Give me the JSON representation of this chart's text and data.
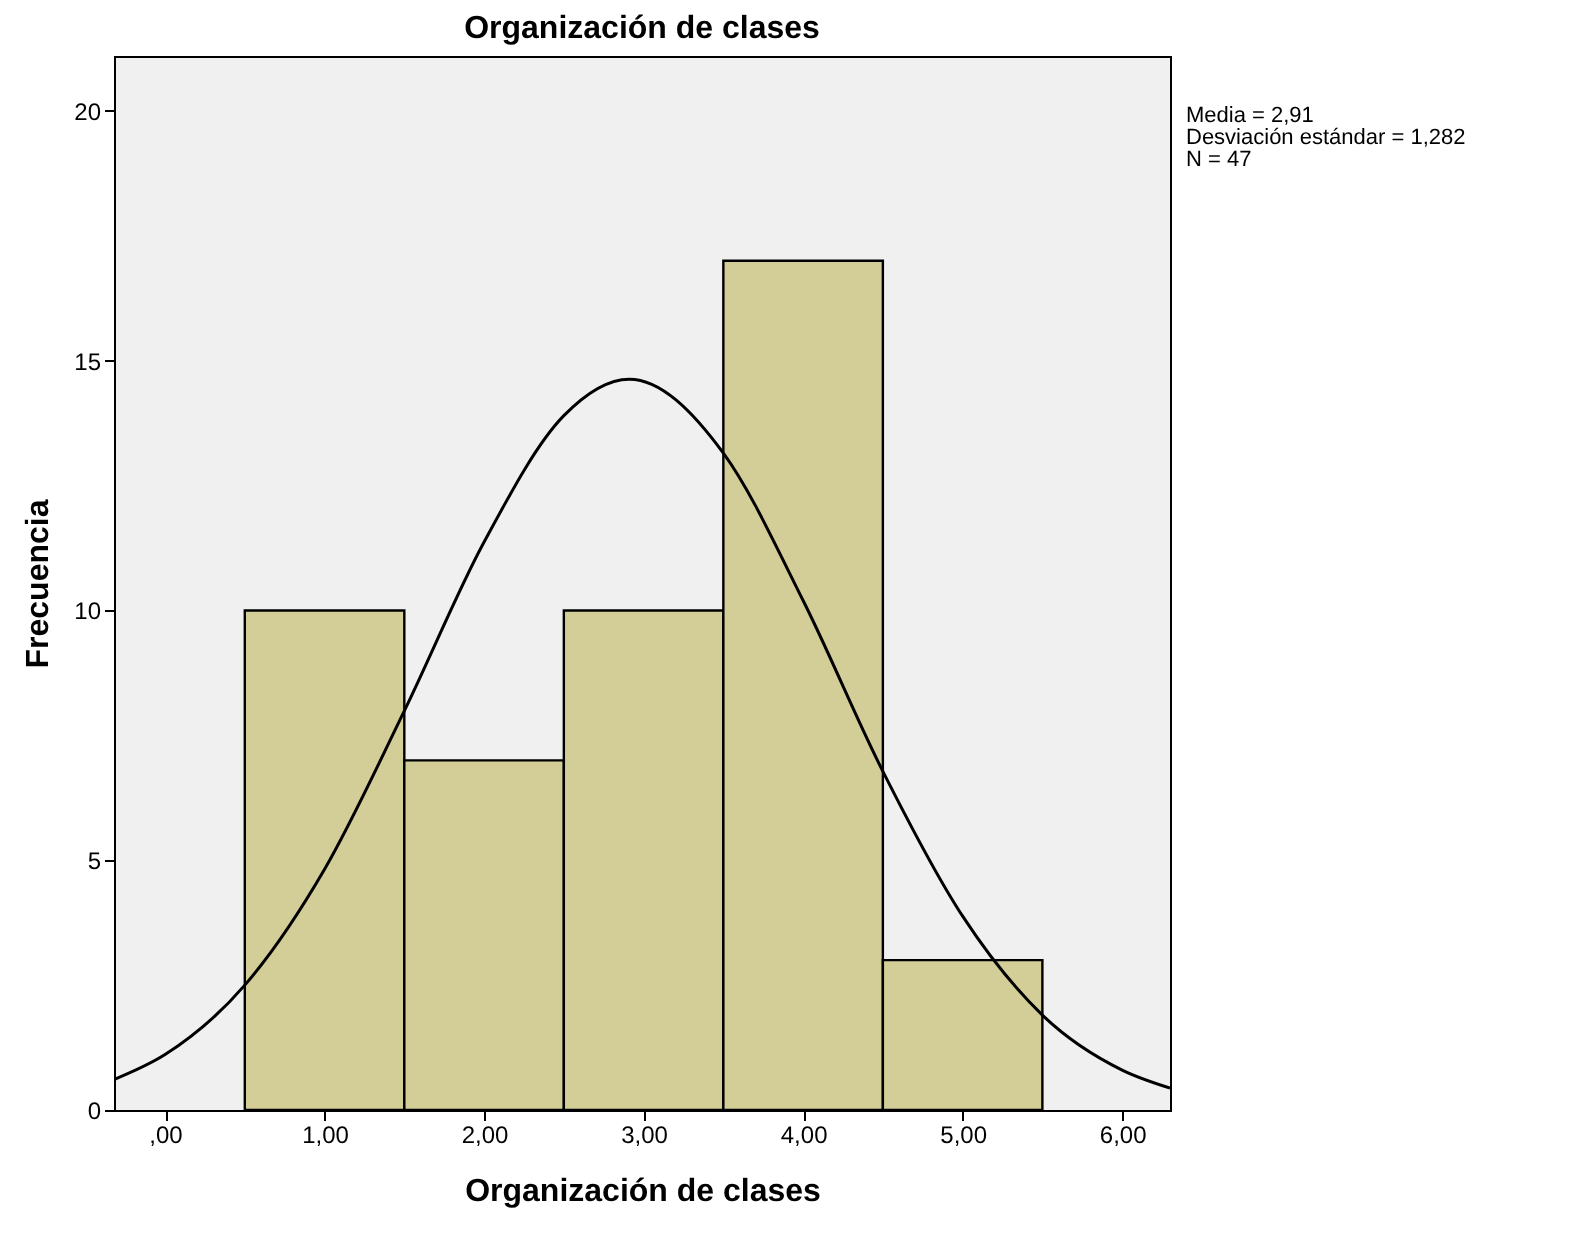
{
  "chart_data": {
    "type": "histogram",
    "title": "Organización de clases",
    "xlabel": "Organización de clases",
    "ylabel": "Frecuencia",
    "bins": [
      0.5,
      1.5,
      2.5,
      3.5,
      4.5,
      5.5
    ],
    "series": [
      {
        "color": "#d3ce97",
        "values": [
          10,
          7,
          10,
          17,
          3
        ]
      },
      {
        "type": "line",
        "color": "#000000",
        "x": [
          -0.32,
          0,
          0.5,
          1,
          1.5,
          2,
          2.5,
          2.91,
          3.5,
          4,
          4.5,
          5,
          5.5,
          6,
          6.3
        ],
        "values": [
          0.61,
          1.11,
          2.5,
          4.82,
          7.99,
          11.37,
          13.9,
          14.63,
          13.15,
          10.2,
          6.78,
          3.88,
          1.9,
          0.8,
          0.44
        ]
      }
    ],
    "xlim": [
      -0.32,
      6.3
    ],
    "xticks": [
      {
        "value": 0,
        "label": ",00"
      },
      {
        "value": 1,
        "label": "1,00"
      },
      {
        "value": 2,
        "label": "2,00"
      },
      {
        "value": 3,
        "label": "3,00"
      },
      {
        "value": 4,
        "label": "4,00"
      },
      {
        "value": 5,
        "label": "5,00"
      },
      {
        "value": 6,
        "label": "6,00"
      }
    ],
    "ylim": [
      0,
      21.1
    ],
    "yticks": [
      0,
      5,
      10,
      15,
      20
    ],
    "annotations": [
      "Media = 2,91",
      "Desviación estándar = 1,282",
      "N = 47"
    ]
  }
}
